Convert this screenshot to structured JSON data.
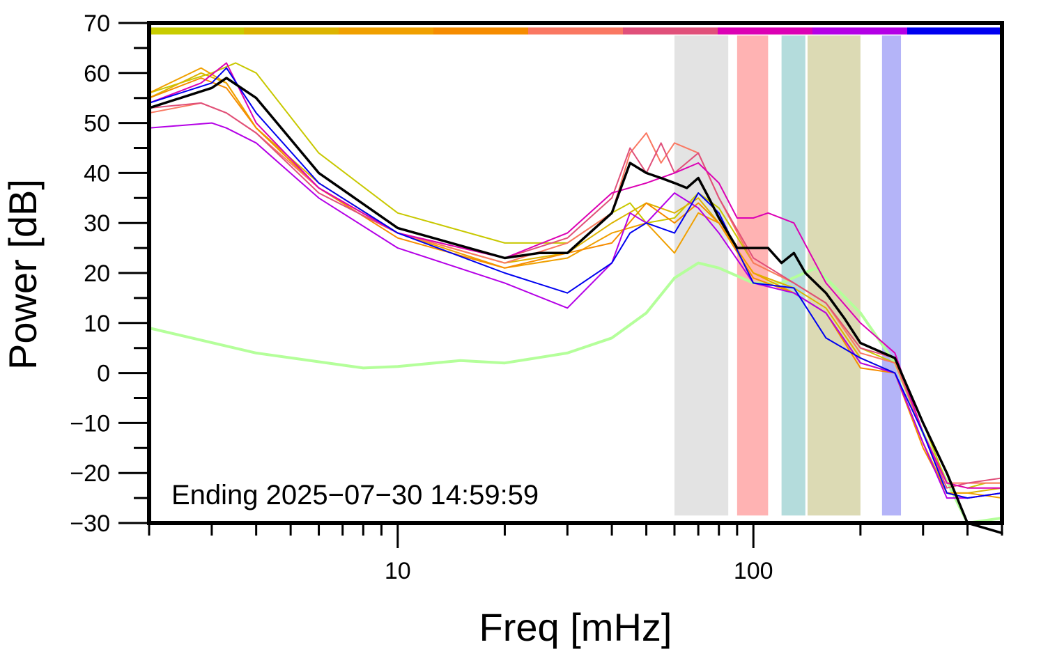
{
  "chart_data": {
    "type": "line",
    "xlabel": "Freq [mHz]",
    "ylabel": "Power [dB]",
    "x_scale": "log",
    "xlim": [
      2,
      500
    ],
    "ylim": [
      -30,
      70
    ],
    "x_tick_labels": [
      "10",
      "100"
    ],
    "y_ticks": [
      70,
      60,
      50,
      40,
      30,
      20,
      10,
      0,
      -10,
      -20,
      -30
    ],
    "y_tick_labels": [
      "70",
      "60",
      "50",
      "40",
      "30",
      "20",
      "10",
      "0",
      "−10",
      "−20",
      "−30"
    ],
    "annotation": "Ending 2025−07−30 14:59:59",
    "grid": false,
    "color_strip": [
      "#c8cc00",
      "#dcb400",
      "#f0a000",
      "#f68c00",
      "#fa7862",
      "#e0507a",
      "#dc00b4",
      "#b400e6",
      "#0000f0"
    ],
    "bands": [
      {
        "from": 60,
        "to": 85,
        "color": "#e3e3e3"
      },
      {
        "from": 90,
        "to": 110,
        "color": "#ffb3b3"
      },
      {
        "from": 120,
        "to": 140,
        "color": "#b4dcdc"
      },
      {
        "from": 142,
        "to": 200,
        "color": "#dcdab4"
      },
      {
        "from": 230,
        "to": 260,
        "color": "#b4b4f8"
      }
    ],
    "series": [
      {
        "color": "#b4ff9a",
        "width": 4,
        "x": [
          2,
          4,
          8,
          10,
          15,
          20,
          30,
          40,
          50,
          60,
          70,
          80,
          100,
          120,
          150,
          200,
          250,
          300,
          400,
          500
        ],
        "values": [
          9,
          4,
          1,
          1.3,
          2.5,
          2,
          4,
          7,
          12,
          19,
          22,
          21,
          18,
          18,
          21,
          12,
          2,
          -12,
          -30,
          -29
        ]
      },
      {
        "color": "#c8c800",
        "width": 2,
        "x": [
          2,
          3,
          3.5,
          4,
          6,
          10,
          20,
          30,
          40,
          45,
          50,
          60,
          70,
          80,
          100,
          130,
          160,
          200,
          250,
          300,
          350,
          400,
          450,
          500
        ],
        "values": [
          56,
          60,
          62,
          60,
          44,
          32,
          26,
          26,
          32,
          34,
          30,
          31,
          36,
          33,
          22,
          18,
          14,
          5,
          2,
          -10,
          -22,
          -23,
          -22,
          -22
        ]
      },
      {
        "color": "#dcb400",
        "width": 2,
        "x": [
          2,
          2.8,
          3.3,
          4,
          6,
          10,
          20,
          30,
          40,
          50,
          60,
          70,
          80,
          100,
          130,
          160,
          200,
          250,
          300,
          350,
          400,
          500
        ],
        "values": [
          55,
          60,
          58,
          49,
          38,
          28,
          22,
          24,
          30,
          34,
          32,
          35,
          30,
          20,
          17,
          13,
          3,
          0,
          -14,
          -24,
          -24,
          -23
        ]
      },
      {
        "color": "#f0a000",
        "width": 2,
        "x": [
          2,
          2.8,
          3.3,
          4,
          6,
          10,
          20,
          30,
          40,
          50,
          60,
          70,
          80,
          100,
          130,
          160,
          200,
          250,
          300,
          350,
          400,
          500
        ],
        "values": [
          56,
          61,
          58,
          49,
          37,
          28,
          21,
          23,
          28,
          30,
          24,
          32,
          30,
          20,
          16,
          12,
          2,
          0,
          -14,
          -24,
          -24,
          -25
        ]
      },
      {
        "color": "#f68c00",
        "width": 2,
        "x": [
          2,
          2.8,
          3.3,
          4,
          6,
          10,
          20,
          30,
          40,
          50,
          60,
          70,
          80,
          100,
          130,
          160,
          200,
          250,
          300,
          350,
          400,
          500
        ],
        "values": [
          55,
          59,
          57,
          49,
          37,
          27,
          21,
          24,
          26,
          34,
          30,
          34,
          30,
          19,
          16,
          12,
          1,
          0,
          -15,
          -24,
          -25,
          -24
        ]
      },
      {
        "color": "#fa7862",
        "width": 2,
        "x": [
          2,
          2.8,
          3.3,
          4,
          6,
          10,
          20,
          30,
          40,
          45,
          50,
          55,
          60,
          70,
          80,
          100,
          130,
          160,
          200,
          250,
          300,
          350,
          400,
          500
        ],
        "values": [
          52,
          54,
          52,
          48,
          37,
          28,
          22,
          26,
          32,
          44,
          48,
          42,
          46,
          44,
          35,
          22,
          18,
          14,
          4,
          2,
          -12,
          -22,
          -22,
          -22
        ]
      },
      {
        "color": "#e0507a",
        "width": 2,
        "x": [
          2,
          2.8,
          3.3,
          4,
          6,
          10,
          20,
          30,
          40,
          45,
          50,
          55,
          60,
          70,
          80,
          100,
          130,
          160,
          200,
          250,
          300,
          350,
          400,
          500
        ],
        "values": [
          53,
          54,
          52,
          48,
          36,
          28,
          23,
          27,
          35,
          45,
          40,
          46,
          40,
          44,
          35,
          23,
          18,
          14,
          5,
          3,
          -12,
          -23,
          -22,
          -21
        ]
      },
      {
        "color": "#dc00b4",
        "width": 2,
        "x": [
          2,
          2.8,
          3.3,
          4,
          6,
          10,
          20,
          30,
          40,
          50,
          60,
          70,
          80,
          90,
          100,
          110,
          130,
          160,
          200,
          250,
          300,
          350,
          400,
          500
        ],
        "values": [
          54,
          58,
          62,
          50,
          37,
          28,
          23,
          28,
          36,
          38,
          40,
          42,
          38,
          31,
          31,
          32,
          30,
          18,
          10,
          4,
          -12,
          -22,
          -23,
          -23
        ]
      },
      {
        "color": "#b400e6",
        "width": 2,
        "x": [
          2,
          3,
          3.3,
          4,
          6,
          10,
          20,
          30,
          40,
          45,
          50,
          60,
          70,
          80,
          100,
          130,
          160,
          200,
          250,
          300,
          350,
          400,
          500
        ],
        "values": [
          49,
          50,
          49,
          46,
          35,
          25,
          18,
          13,
          22,
          32,
          30,
          36,
          33,
          28,
          18,
          16,
          12,
          2,
          0,
          -14,
          -25,
          -25,
          -24
        ]
      },
      {
        "color": "#0000f0",
        "width": 2,
        "x": [
          2,
          3,
          3.3,
          4,
          6,
          10,
          20,
          30,
          40,
          45,
          50,
          60,
          70,
          80,
          100,
          130,
          160,
          200,
          250,
          300,
          350,
          400,
          500
        ],
        "values": [
          54,
          58,
          61,
          52,
          38,
          28,
          20,
          16,
          22,
          28,
          30,
          28,
          36,
          32,
          18,
          17,
          7,
          3,
          0,
          -12,
          -24,
          -25,
          -24
        ]
      },
      {
        "color": "#000000",
        "width": 3.5,
        "x": [
          2,
          3,
          3.3,
          4,
          6,
          10,
          20,
          25,
          30,
          40,
          45,
          50,
          55,
          60,
          65,
          70,
          75,
          80,
          90,
          100,
          110,
          120,
          130,
          140,
          160,
          180,
          200,
          250,
          300,
          350,
          400,
          500
        ],
        "values": [
          53,
          57,
          59,
          55,
          40,
          29,
          23,
          24,
          24,
          32,
          42,
          40,
          39,
          38,
          37,
          39,
          35,
          31,
          25,
          25,
          25,
          22,
          24,
          20,
          16,
          11,
          6,
          3,
          -10,
          -20,
          -30,
          -32
        ]
      }
    ]
  }
}
